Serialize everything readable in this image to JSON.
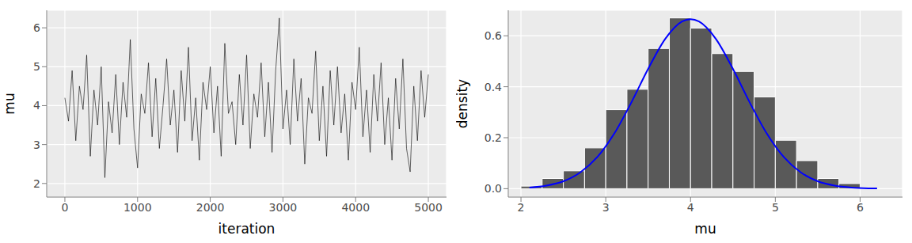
{
  "chart_data": [
    {
      "type": "line",
      "x_label": "iteration",
      "y_label": "mu",
      "color": "#000000",
      "grid": true,
      "xlim": [
        -250,
        5250
      ],
      "xticks": [
        0,
        1000,
        2000,
        3000,
        4000,
        5000
      ],
      "ylim": [
        1.65,
        6.45
      ],
      "yticks": [
        2,
        3,
        4,
        5,
        6
      ],
      "x": [
        0,
        50,
        100,
        150,
        200,
        250,
        300,
        350,
        400,
        450,
        500,
        550,
        600,
        650,
        700,
        750,
        800,
        850,
        900,
        950,
        1000,
        1050,
        1100,
        1150,
        1200,
        1250,
        1300,
        1350,
        1400,
        1450,
        1500,
        1550,
        1600,
        1650,
        1700,
        1750,
        1800,
        1850,
        1900,
        1950,
        2000,
        2050,
        2100,
        2150,
        2200,
        2250,
        2300,
        2350,
        2400,
        2450,
        2500,
        2550,
        2600,
        2650,
        2700,
        2750,
        2800,
        2850,
        2900,
        2950,
        3000,
        3050,
        3100,
        3150,
        3200,
        3250,
        3300,
        3350,
        3400,
        3450,
        3500,
        3550,
        3600,
        3650,
        3700,
        3750,
        3800,
        3850,
        3900,
        3950,
        4000,
        4050,
        4100,
        4150,
        4200,
        4250,
        4300,
        4350,
        4400,
        4450,
        4500,
        4550,
        4600,
        4650,
        4700,
        4750,
        4800,
        4850,
        4900,
        4950,
        5000
      ],
      "values": [
        4.2,
        3.6,
        4.9,
        3.1,
        4.5,
        3.9,
        5.3,
        2.7,
        4.4,
        3.5,
        5.0,
        2.15,
        4.1,
        3.3,
        4.8,
        3.0,
        4.6,
        3.7,
        5.7,
        3.4,
        2.4,
        4.3,
        3.8,
        5.1,
        3.2,
        4.7,
        2.9,
        4.0,
        5.2,
        3.5,
        4.4,
        2.8,
        4.9,
        3.6,
        5.5,
        3.1,
        4.2,
        2.6,
        4.6,
        3.9,
        5.0,
        3.3,
        4.5,
        2.7,
        5.6,
        3.8,
        4.1,
        3.0,
        4.8,
        3.5,
        5.3,
        2.9,
        4.3,
        3.7,
        5.1,
        3.2,
        4.6,
        2.8,
        4.9,
        6.25,
        3.4,
        4.4,
        3.0,
        5.2,
        3.6,
        4.7,
        2.5,
        4.2,
        3.8,
        5.4,
        3.1,
        4.5,
        2.7,
        4.9,
        3.5,
        5.0,
        3.3,
        4.3,
        2.6,
        4.6,
        3.9,
        5.5,
        3.2,
        4.4,
        2.8,
        4.8,
        3.6,
        5.1,
        3.0,
        4.2,
        2.6,
        4.7,
        3.4,
        5.2,
        2.9,
        2.3,
        4.5,
        3.1,
        4.9,
        3.7,
        4.8
      ]
    },
    {
      "type": "histogram",
      "x_label": "mu",
      "y_label": "density",
      "color": "#595959",
      "grid": true,
      "xlim": [
        1.85,
        6.5
      ],
      "xticks": [
        2,
        3,
        4,
        5,
        6
      ],
      "ylim": [
        -0.033,
        0.7
      ],
      "yticks": [
        {
          "value": 0,
          "label": "0.0"
        },
        0.2,
        0.4,
        0.6
      ],
      "bins": [
        2.0,
        2.25,
        2.5,
        2.75,
        3.0,
        3.25,
        3.5,
        3.75,
        4.0,
        4.25,
        4.5,
        4.75,
        5.0,
        5.25,
        5.5,
        5.75,
        6.0
      ],
      "values": [
        0.01,
        0.04,
        0.07,
        0.16,
        0.31,
        0.39,
        0.55,
        0.67,
        0.63,
        0.53,
        0.46,
        0.36,
        0.19,
        0.11,
        0.04,
        0.02
      ],
      "series": [
        {
          "type": "line",
          "color": "#0000ff",
          "x": [
            2.1,
            2.3,
            2.5,
            2.7,
            2.9,
            3.1,
            3.3,
            3.5,
            3.7,
            3.9,
            4.0,
            4.1,
            4.3,
            4.5,
            4.7,
            4.9,
            5.1,
            5.3,
            5.5,
            5.7,
            5.9,
            6.1,
            6.2
          ],
          "values": [
            0.0044,
            0.012,
            0.029,
            0.064,
            0.124,
            0.216,
            0.337,
            0.47,
            0.587,
            0.656,
            0.665,
            0.656,
            0.587,
            0.47,
            0.337,
            0.216,
            0.124,
            0.064,
            0.029,
            0.012,
            0.0044,
            0.0014,
            0.0008
          ]
        }
      ]
    }
  ]
}
